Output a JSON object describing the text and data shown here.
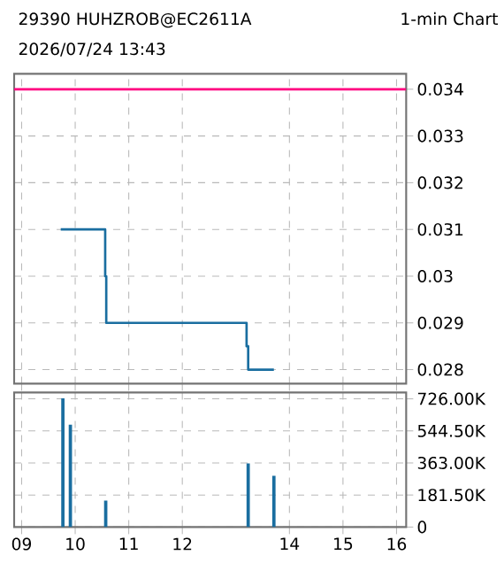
{
  "chart_data": [
    {
      "type": "step",
      "title": "29390 HUHZROB@EC2611A",
      "subtitle": "2026/07/24 13:43",
      "annotations": [
        "1-min Chart"
      ],
      "x": [
        9.73,
        10.56,
        10.58,
        13.2,
        13.23,
        13.71
      ],
      "values": [
        0.031,
        0.03,
        0.029,
        0.0285,
        0.028,
        0.028
      ],
      "color": "#1a6ea0",
      "xlim": [
        8.86,
        16.18
      ],
      "ylim": [
        0.0277,
        0.03433
      ],
      "xticks": [
        9,
        10,
        11,
        12,
        14,
        15,
        16
      ],
      "yticks": [
        0.028,
        0.029,
        0.03,
        0.031,
        0.032,
        0.033,
        0.034
      ],
      "ref_lines": [
        {
          "axis": "y",
          "value": 0.034,
          "color": "#ff0080"
        }
      ],
      "grid": true,
      "tick_labels": "y"
    },
    {
      "type": "bar",
      "x": [
        9.77,
        9.91,
        10.57,
        13.23,
        13.71
      ],
      "values": [
        730000,
        580000,
        150000,
        360000,
        290000
      ],
      "color": "#1a6ea0",
      "xlim": [
        8.86,
        16.18
      ],
      "ylim": [
        0,
        762000
      ],
      "xticks": [
        {
          "value": 9,
          "label": "09"
        },
        10,
        11,
        12,
        14,
        15,
        16
      ],
      "yticks": [
        0,
        {
          "value": 181500,
          "label": "181.50K"
        },
        {
          "value": 363000,
          "label": "363.00K"
        },
        {
          "value": 544500,
          "label": "544.50K"
        },
        {
          "value": 726000,
          "label": "726.00K"
        }
      ],
      "grid": true
    }
  ]
}
